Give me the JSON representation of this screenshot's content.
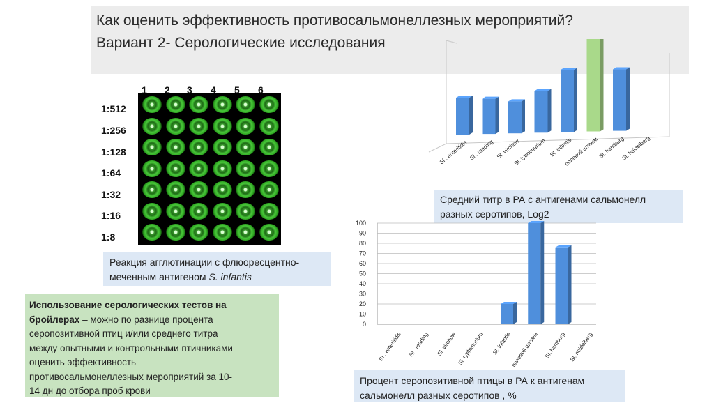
{
  "title": {
    "line1": "Как оценить эффективность противосальмонеллезных мероприятий?",
    "line2": "Вариант 2- Серологические исследования"
  },
  "plate": {
    "columns": [
      "1",
      "2",
      "3",
      "4",
      "5",
      "6"
    ],
    "rows": [
      "1:512",
      "1:256",
      "1:128",
      "1:64",
      "1:32",
      "1:16",
      "1:8"
    ]
  },
  "plate_caption": {
    "line1": "Реакция агглютинации с флюоресцентно-",
    "line2_prefix": "меченным антигеном ",
    "line2_italic": "S. infantis"
  },
  "info_box": {
    "bold_text": "Использование серологических тестов на бройлерах",
    "text_lines": [
      " – можно по разнице процента",
      "серопозитивной птиц и/или среднего титра",
      "между опытными и контрольными птичниками",
      "оценить эффективность",
      "противосальмонеллезных мероприятий за 10-",
      "14 дн до отбора проб крови"
    ],
    "bold_line1": "Использование серологических тестов на",
    "bold_line2": "бройлерах"
  },
  "chart1_caption": {
    "line1": "Средний титр в РА с антигенами сальмонелл",
    "line2": "разных серотипов, Log2"
  },
  "chart2_caption": {
    "line1": "Процент серопозитивной птицы в РА к антигенам",
    "line2": "сальмонелл разных серотипов , %"
  },
  "colors": {
    "bar": "#4f8fdc",
    "bar_highlight": "#a9d98a",
    "caption_bg": "#dde8f5",
    "info_bg": "#c8e3c0"
  },
  "chart_data": [
    {
      "type": "bar",
      "categories": [
        "Sl . enteritidis",
        "Sl . reading",
        "Sl. virchow",
        "Sl. typhimurium",
        "Sl. infantis",
        "полевой штамм",
        "Sl. hamburg",
        "Sl. heidelberg"
      ],
      "values": [
        4.5,
        4.3,
        3.9,
        5.1,
        7.6,
        11.5,
        7.5,
        0
      ],
      "highlight_index": 5,
      "grid": false
    },
    {
      "type": "bar",
      "categories": [
        "Sl . enteritidis",
        "Sl . reading",
        "Sl. virchow",
        "Sl. typhimurium",
        "Sl. infantis",
        "полевой штамм",
        "Sl. hamburg",
        "Sl. heidelberg"
      ],
      "values": [
        0,
        0,
        0,
        0,
        20,
        100,
        76,
        0
      ],
      "yticks": [
        "0",
        "10",
        "20",
        "30",
        "40",
        "50",
        "60",
        "70",
        "80",
        "90",
        "100"
      ],
      "ylim": [
        0,
        100
      ],
      "grid": true
    }
  ]
}
